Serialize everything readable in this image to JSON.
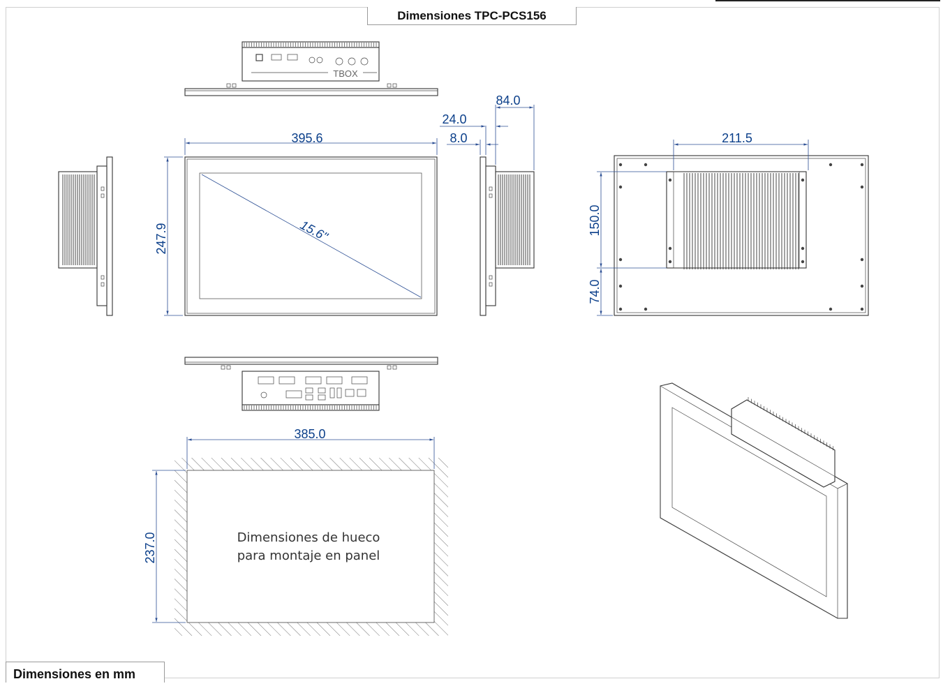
{
  "title": "Dimensiones TPC-PCS156",
  "units_label": "Dimensiones en mm",
  "dimensions": {
    "width": "395.6",
    "height": "247.9",
    "diagonal": "15.6\"",
    "depth_total": "84.0",
    "depth_box": "24.0",
    "depth_bezel": "8.0",
    "box_width": "211.5",
    "box_height": "150.0",
    "box_offset": "74.0",
    "cutout_width": "385.0",
    "cutout_height": "237.0"
  },
  "logo_text": "TBOX",
  "cutout": {
    "line1": "Dimensiones de hueco",
    "line2": "para montaje en panel"
  },
  "colors": {
    "dimension": "#0b3f8a",
    "outline": "#333333"
  }
}
